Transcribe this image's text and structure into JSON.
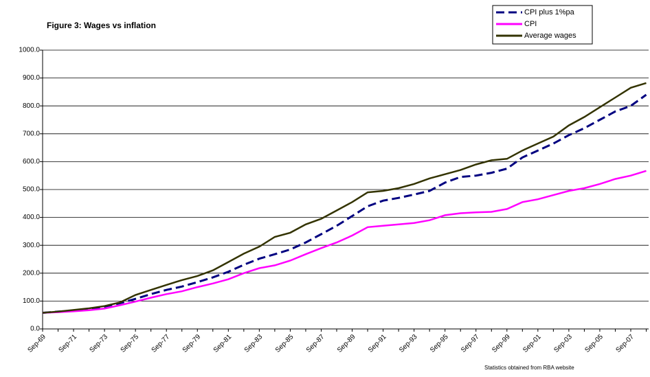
{
  "chart_data": {
    "type": "line",
    "title": "Figure 3: Wages vs inflation",
    "footnote": "Statistics obtained from RBA website",
    "categories": [
      "Sep-69",
      null,
      "Sep-71",
      null,
      "Sep-73",
      null,
      "Sep-75",
      null,
      "Sep-77",
      null,
      "Sep-79",
      null,
      "Sep-81",
      null,
      "Sep-83",
      null,
      "Sep-85",
      null,
      "Sep-87",
      null,
      "Sep-89",
      null,
      "Sep-91",
      null,
      "Sep-93",
      null,
      "Sep-95",
      null,
      "Sep-97",
      null,
      "Sep-99",
      null,
      "Sep-01",
      null,
      "Sep-03",
      null,
      "Sep-05",
      null,
      "Sep-07",
      null
    ],
    "series": [
      {
        "name": "CPI plus 1%pa",
        "color": "#000080",
        "style": "dashed",
        "values": [
          58,
          62,
          65,
          70,
          80,
          92,
          108,
          125,
          140,
          152,
          168,
          185,
          205,
          230,
          252,
          268,
          285,
          310,
          340,
          370,
          405,
          440,
          460,
          470,
          482,
          495,
          525,
          545,
          550,
          560,
          575,
          615,
          640,
          665,
          695,
          720,
          750,
          780,
          800,
          840
        ]
      },
      {
        "name": "CPI",
        "color": "#ff00ff",
        "style": "solid",
        "values": [
          58,
          60,
          63,
          67,
          73,
          85,
          98,
          112,
          125,
          135,
          150,
          163,
          178,
          200,
          218,
          228,
          245,
          268,
          290,
          310,
          335,
          365,
          370,
          375,
          380,
          390,
          408,
          415,
          418,
          420,
          430,
          455,
          465,
          480,
          495,
          505,
          520,
          538,
          550,
          567
        ]
      },
      {
        "name": "Average wages",
        "color": "#333300",
        "style": "solid",
        "values": [
          58,
          62,
          68,
          74,
          82,
          95,
          122,
          140,
          158,
          175,
          190,
          210,
          240,
          270,
          295,
          330,
          345,
          375,
          395,
          425,
          455,
          490,
          495,
          505,
          520,
          540,
          555,
          570,
          590,
          605,
          610,
          640,
          665,
          690,
          730,
          760,
          795,
          830,
          865,
          882
        ]
      }
    ],
    "ylim": [
      0,
      1000
    ],
    "yticks": [
      {
        "value": 0,
        "label": "0.0"
      },
      {
        "value": 100,
        "label": "100.0"
      },
      {
        "value": 200,
        "label": "200.0"
      },
      {
        "value": 300,
        "label": "300.0"
      },
      {
        "value": 400,
        "label": "400.0"
      },
      {
        "value": 500,
        "label": "500.0"
      },
      {
        "value": 600,
        "label": "600.0"
      },
      {
        "value": 700,
        "label": "700.0"
      },
      {
        "value": 800,
        "label": "800.0"
      },
      {
        "value": 900,
        "label": "900.0"
      },
      {
        "value": 1000,
        "label": "1000.0"
      }
    ],
    "grid": true,
    "legend": "top-right"
  }
}
